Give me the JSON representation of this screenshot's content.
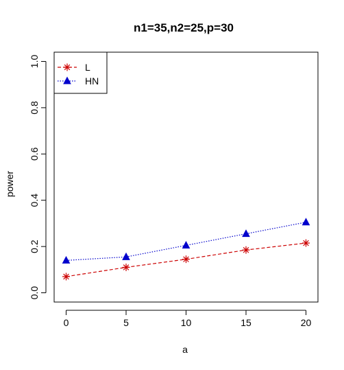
{
  "chart_data": {
    "type": "line",
    "title": "n1=35,n2=25,p=30",
    "xlabel": "a",
    "ylabel": "power",
    "x": [
      0,
      5,
      10,
      15,
      20
    ],
    "xlim": [
      -1,
      21
    ],
    "ylim": [
      -0.04,
      1.04
    ],
    "xticks": [
      "0",
      "5",
      "10",
      "15",
      "20"
    ],
    "yticks": [
      "0.0",
      "0.2",
      "0.4",
      "0.6",
      "0.8",
      "1.0"
    ],
    "series": [
      {
        "name": "L",
        "values": [
          0.07,
          0.11,
          0.145,
          0.185,
          0.215
        ],
        "color": "#cc0000",
        "marker": "asterisk",
        "line_style": "dashed"
      },
      {
        "name": "HN",
        "values": [
          0.14,
          0.155,
          0.205,
          0.255,
          0.305
        ],
        "color": "#0000cc",
        "marker": "triangle",
        "line_style": "dotted"
      }
    ],
    "grid": false,
    "legend_position": "top-left"
  }
}
